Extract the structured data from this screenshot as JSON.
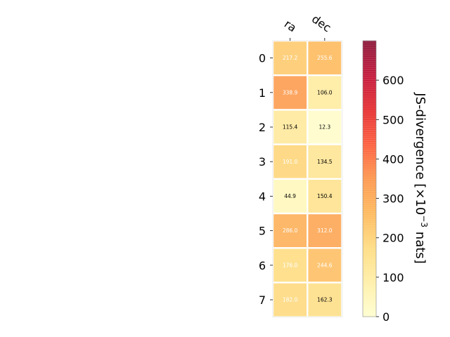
{
  "chart_data": {
    "type": "heatmap",
    "columns": [
      "ra",
      "dec"
    ],
    "rows": [
      "0",
      "1",
      "2",
      "3",
      "4",
      "5",
      "6",
      "7"
    ],
    "values": [
      [
        217.2,
        255.6
      ],
      [
        338.9,
        106.0
      ],
      [
        115.4,
        12.3
      ],
      [
        191.0,
        134.5
      ],
      [
        44.9,
        150.4
      ],
      [
        286.0,
        312.0
      ],
      [
        176.0,
        244.6
      ],
      [
        182.0,
        162.3
      ]
    ],
    "cell_labels": [
      [
        "217.2",
        "255.6"
      ],
      [
        "338.9",
        "106.0"
      ],
      [
        "115.4",
        "12.3"
      ],
      [
        "191.0",
        "134.5"
      ],
      [
        "44.9",
        "150.4"
      ],
      [
        "286.0",
        "312.0"
      ],
      [
        "176.0",
        "244.6"
      ],
      [
        "182.0",
        "162.3"
      ]
    ],
    "colorbar": {
      "label_main": "JS-divergence [×10",
      "label_exp": "−3",
      "label_unit": " nats]",
      "range": [
        0,
        700
      ],
      "ticks": [
        0,
        100,
        200,
        300,
        400,
        500,
        600
      ],
      "tick_labels": [
        "0",
        "100",
        "200",
        "300",
        "400",
        "500",
        "600"
      ],
      "colormap": "YlOrRd"
    }
  }
}
